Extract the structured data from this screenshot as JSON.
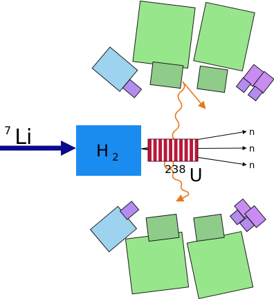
{
  "beam": {
    "nucleus_mass": "7",
    "nucleus_symbol": "Li",
    "color": "#0a0a8c"
  },
  "target": {
    "symbol": "H",
    "subscript": "2",
    "color": "#1a8cf0",
    "text_color": "#ffffff"
  },
  "sample": {
    "mass": "238",
    "symbol": "U",
    "color": "#b8183a",
    "stripe_color": "#ffffff"
  },
  "neutrons": {
    "labels": [
      "n",
      "n",
      "n"
    ]
  },
  "gamma_color": "#e8771a",
  "detectors": {
    "large_color": "#98e68c",
    "neck_color": "#8fcc8a",
    "side_color": "#9dd3ee",
    "small_color": "#b48cf0",
    "purple_color": "#c98cf2",
    "outline_color": "#1a1a1a"
  }
}
